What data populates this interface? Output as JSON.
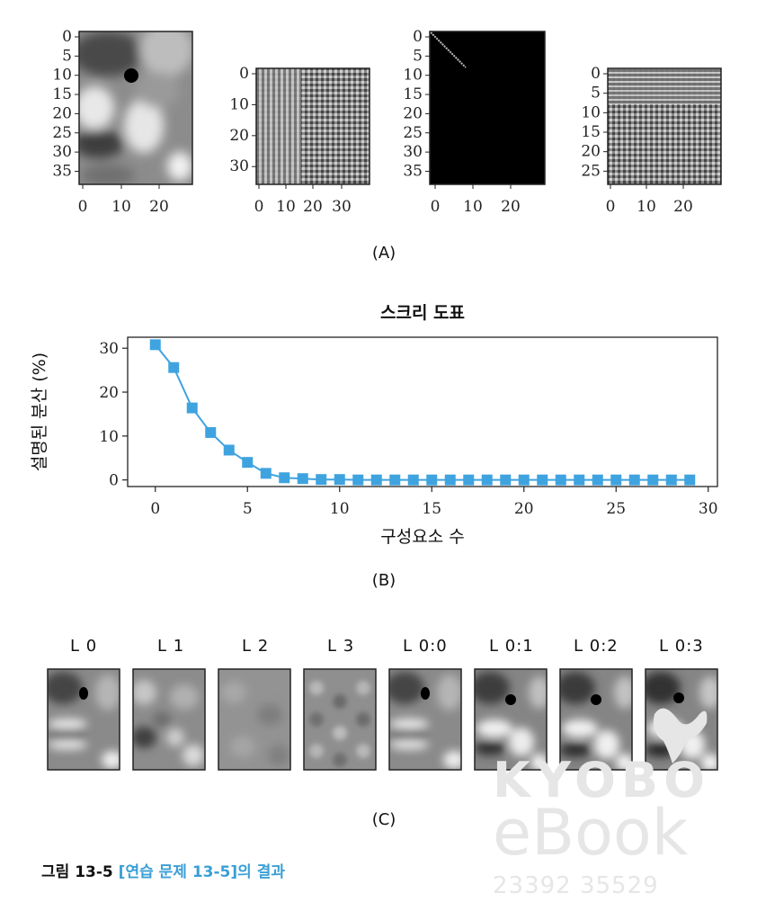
{
  "panel_a": {
    "caption": "(A)",
    "images": [
      {
        "y_ticks": [
          "0",
          "5",
          "10",
          "15",
          "20",
          "25",
          "30",
          "35"
        ],
        "x_ticks": [
          "0",
          "10",
          "20"
        ]
      },
      {
        "y_ticks": [
          "0",
          "10",
          "20",
          "30"
        ],
        "x_ticks": [
          "0",
          "10",
          "20",
          "30"
        ]
      },
      {
        "y_ticks": [
          "0",
          "5",
          "10",
          "15",
          "20",
          "25",
          "30",
          "35"
        ],
        "x_ticks": [
          "0",
          "10",
          "20"
        ]
      },
      {
        "y_ticks": [
          "0",
          "5",
          "10",
          "15",
          "20",
          "25"
        ],
        "x_ticks": [
          "0",
          "10",
          "20"
        ]
      }
    ]
  },
  "panel_b": {
    "caption": "(B)"
  },
  "chart_data": {
    "type": "line",
    "title": "스크리 도표",
    "xlabel": "구성요소 수",
    "ylabel": "설명된 분산 (%)",
    "x": [
      0,
      1,
      2,
      3,
      4,
      5,
      6,
      7,
      8,
      9,
      10,
      11,
      12,
      13,
      14,
      15,
      16,
      17,
      18,
      19,
      20,
      21,
      22,
      23,
      24,
      25,
      26,
      27,
      28,
      29
    ],
    "series": [
      {
        "values": [
          30.8,
          25.6,
          16.4,
          10.8,
          6.8,
          4.0,
          1.5,
          0.5,
          0.3,
          0.1,
          0.1,
          0,
          0,
          0,
          0,
          0,
          0,
          0,
          0,
          0,
          0,
          0,
          0,
          0,
          0,
          0,
          0,
          0,
          0,
          0
        ]
      }
    ],
    "xlim": [
      -1.5,
      30.5
    ],
    "ylim": [
      -1.5,
      32.5
    ],
    "x_ticks": [
      0,
      5,
      10,
      15,
      20,
      25,
      30
    ],
    "y_ticks": [
      0,
      10,
      20,
      30
    ],
    "marker": "square",
    "color": "#3fa3e0",
    "grid": false
  },
  "panel_c": {
    "caption": "(C)",
    "labels": [
      "L 0",
      "L 1",
      "L 2",
      "L 3",
      "L 0:0",
      "L 0:1",
      "L 0:2",
      "L 0:3"
    ]
  },
  "figure_caption": {
    "label": "그림 13-5",
    "reference": "[연습 문제 13-5]",
    "rest": "의 결과"
  },
  "watermark": {
    "brand": "KYOBO",
    "product": "eBook",
    "code": "23392 35529"
  },
  "colors": {
    "accent": "#3fa3e0",
    "caption_ref": "#3a9fd6"
  }
}
